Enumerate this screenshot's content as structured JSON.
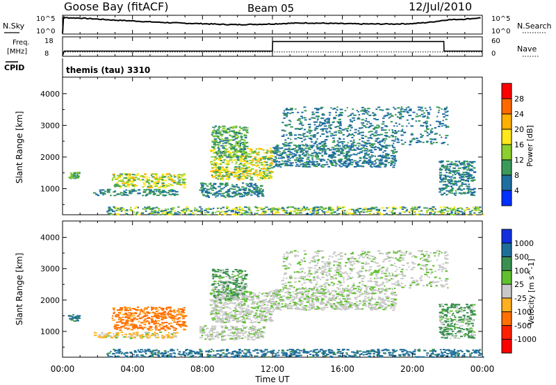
{
  "header": {
    "station": "Goose Bay (fitACF)",
    "beam": "Beam 05",
    "date": "12/Jul/2010"
  },
  "noise_panel": {
    "left_label": "N.Sky",
    "right_label": "N.Search",
    "left_ticks": [
      "10^5",
      "10^0"
    ],
    "right_ticks": [
      "10^5",
      "10^0"
    ]
  },
  "freq_panel": {
    "left_label_1": "Freq.",
    "left_label_2": "[MHz]",
    "right_label": "Nave",
    "left_ticks": [
      "18",
      "8"
    ],
    "right_ticks": [
      "60",
      "0"
    ]
  },
  "cpid": {
    "label": "CPID",
    "program": "themis (tau) 3310"
  },
  "power_colorbar": {
    "label": "Power [dB]",
    "ticks": [
      "28",
      "24",
      "20",
      "16",
      "12",
      "8",
      "4"
    ],
    "colors": [
      "#ff0000",
      "#ff6a00",
      "#ffb000",
      "#ffe81c",
      "#8ccf2e",
      "#3a9a5a",
      "#1e6ea0",
      "#0030ff"
    ]
  },
  "velocity_colorbar": {
    "label": "Velocity [m s^-1]",
    "ticks": [
      "1000",
      "500",
      "100",
      "25",
      "-25",
      "-100",
      "-500",
      "-1000"
    ],
    "colors": [
      "#1030e0",
      "#1e6e9a",
      "#3a9050",
      "#60c030",
      "#c8c8c8",
      "#ffb020",
      "#ff7000",
      "#ff2000",
      "#ff0000"
    ]
  },
  "axes": {
    "y_label": "Slant Range [km]",
    "y_ticks": [
      "4000",
      "3000",
      "2000",
      "1000"
    ],
    "x_label": "Time UT",
    "x_ticks": [
      "00:00",
      "04:00",
      "08:00",
      "12:00",
      "16:00",
      "20:00",
      "00:00"
    ]
  },
  "chart_data": [
    {
      "type": "line",
      "name": "noise",
      "x_hours": [
        0,
        0.05,
        0.1,
        1,
        2,
        3,
        4,
        5,
        6,
        7,
        8,
        9,
        10,
        11,
        12,
        13,
        14,
        15,
        16,
        17,
        18,
        19,
        20,
        21,
        22,
        23,
        24
      ],
      "log_sky": [
        0.0,
        4.4,
        4.5,
        4.4,
        4.1,
        3.8,
        3.6,
        3.3,
        3.1,
        2.9,
        2.8,
        2.6,
        2.5,
        2.6,
        2.7,
        2.9,
        3.0,
        2.9,
        2.8,
        2.7,
        2.7,
        2.7,
        2.8,
        3.2,
        3.9,
        4.1,
        4.5
      ]
    },
    {
      "type": "line",
      "name": "frequency",
      "x_hours": [
        0,
        0.1,
        12,
        12.01,
        21.8,
        21.81,
        24
      ],
      "mhz": [
        8,
        10.5,
        10.5,
        15.8,
        15.8,
        10.5,
        10.5
      ],
      "nave": [
        12,
        12,
        12,
        12,
        12,
        12,
        12
      ]
    },
    {
      "type": "heatmap",
      "name": "power",
      "x_range_hours": [
        0,
        24
      ],
      "y_range_km": [
        200,
        4500
      ],
      "clusters": [
        {
          "x": [
            2.8,
            7.0
          ],
          "y": [
            1050,
            1500
          ],
          "power": [
            8,
            22
          ]
        },
        {
          "x": [
            1.7,
            6.5
          ],
          "y": [
            800,
            1000
          ],
          "power": [
            4,
            12
          ]
        },
        {
          "x": [
            8.4,
            12.0
          ],
          "y": [
            1300,
            2300
          ],
          "power": [
            8,
            24
          ]
        },
        {
          "x": [
            8.5,
            10.5
          ],
          "y": [
            2000,
            3000
          ],
          "power": [
            6,
            16
          ]
        },
        {
          "x": [
            7.8,
            11.5
          ],
          "y": [
            750,
            1200
          ],
          "power": [
            4,
            12
          ]
        },
        {
          "x": [
            2.5,
            24.0
          ],
          "y": [
            200,
            450
          ],
          "power": [
            4,
            20
          ]
        },
        {
          "x": [
            12.0,
            19.0
          ],
          "y": [
            1700,
            2400
          ],
          "power": [
            4,
            10
          ]
        },
        {
          "x": [
            12.5,
            22.0
          ],
          "y": [
            2400,
            3600
          ],
          "power": [
            4,
            10
          ]
        },
        {
          "x": [
            21.5,
            23.5
          ],
          "y": [
            800,
            1900
          ],
          "power": [
            4,
            10
          ]
        },
        {
          "x": [
            0.3,
            0.9
          ],
          "y": [
            1350,
            1550
          ],
          "power": [
            8,
            14
          ]
        }
      ]
    },
    {
      "type": "heatmap",
      "name": "velocity",
      "x_range_hours": [
        0,
        24
      ],
      "y_range_km": [
        200,
        4500
      ],
      "clusters": [
        {
          "x": [
            2.8,
            7.0
          ],
          "y": [
            1050,
            1800
          ],
          "velocity": [
            -500,
            -25
          ]
        },
        {
          "x": [
            1.7,
            6.5
          ],
          "y": [
            800,
            1000
          ],
          "velocity": [
            -100,
            25
          ]
        },
        {
          "x": [
            8.4,
            12.0
          ],
          "y": [
            1300,
            2300
          ],
          "velocity": [
            -25,
            25
          ]
        },
        {
          "x": [
            8.5,
            10.5
          ],
          "y": [
            2000,
            3000
          ],
          "velocity": [
            -25,
            100
          ]
        },
        {
          "x": [
            7.8,
            11.5
          ],
          "y": [
            750,
            1200
          ],
          "velocity": [
            -25,
            25
          ]
        },
        {
          "x": [
            2.5,
            24.0
          ],
          "y": [
            200,
            450
          ],
          "velocity": [
            25,
            500
          ]
        },
        {
          "x": [
            12.0,
            19.0
          ],
          "y": [
            1700,
            2400
          ],
          "velocity": [
            -25,
            25
          ]
        },
        {
          "x": [
            12.5,
            22.0
          ],
          "y": [
            2400,
            3600
          ],
          "velocity": [
            -25,
            25
          ]
        },
        {
          "x": [
            21.5,
            23.5
          ],
          "y": [
            800,
            1900
          ],
          "velocity": [
            -25,
            100
          ]
        },
        {
          "x": [
            0.3,
            0.9
          ],
          "y": [
            1350,
            1550
          ],
          "velocity": [
            25,
            500
          ]
        }
      ]
    }
  ]
}
